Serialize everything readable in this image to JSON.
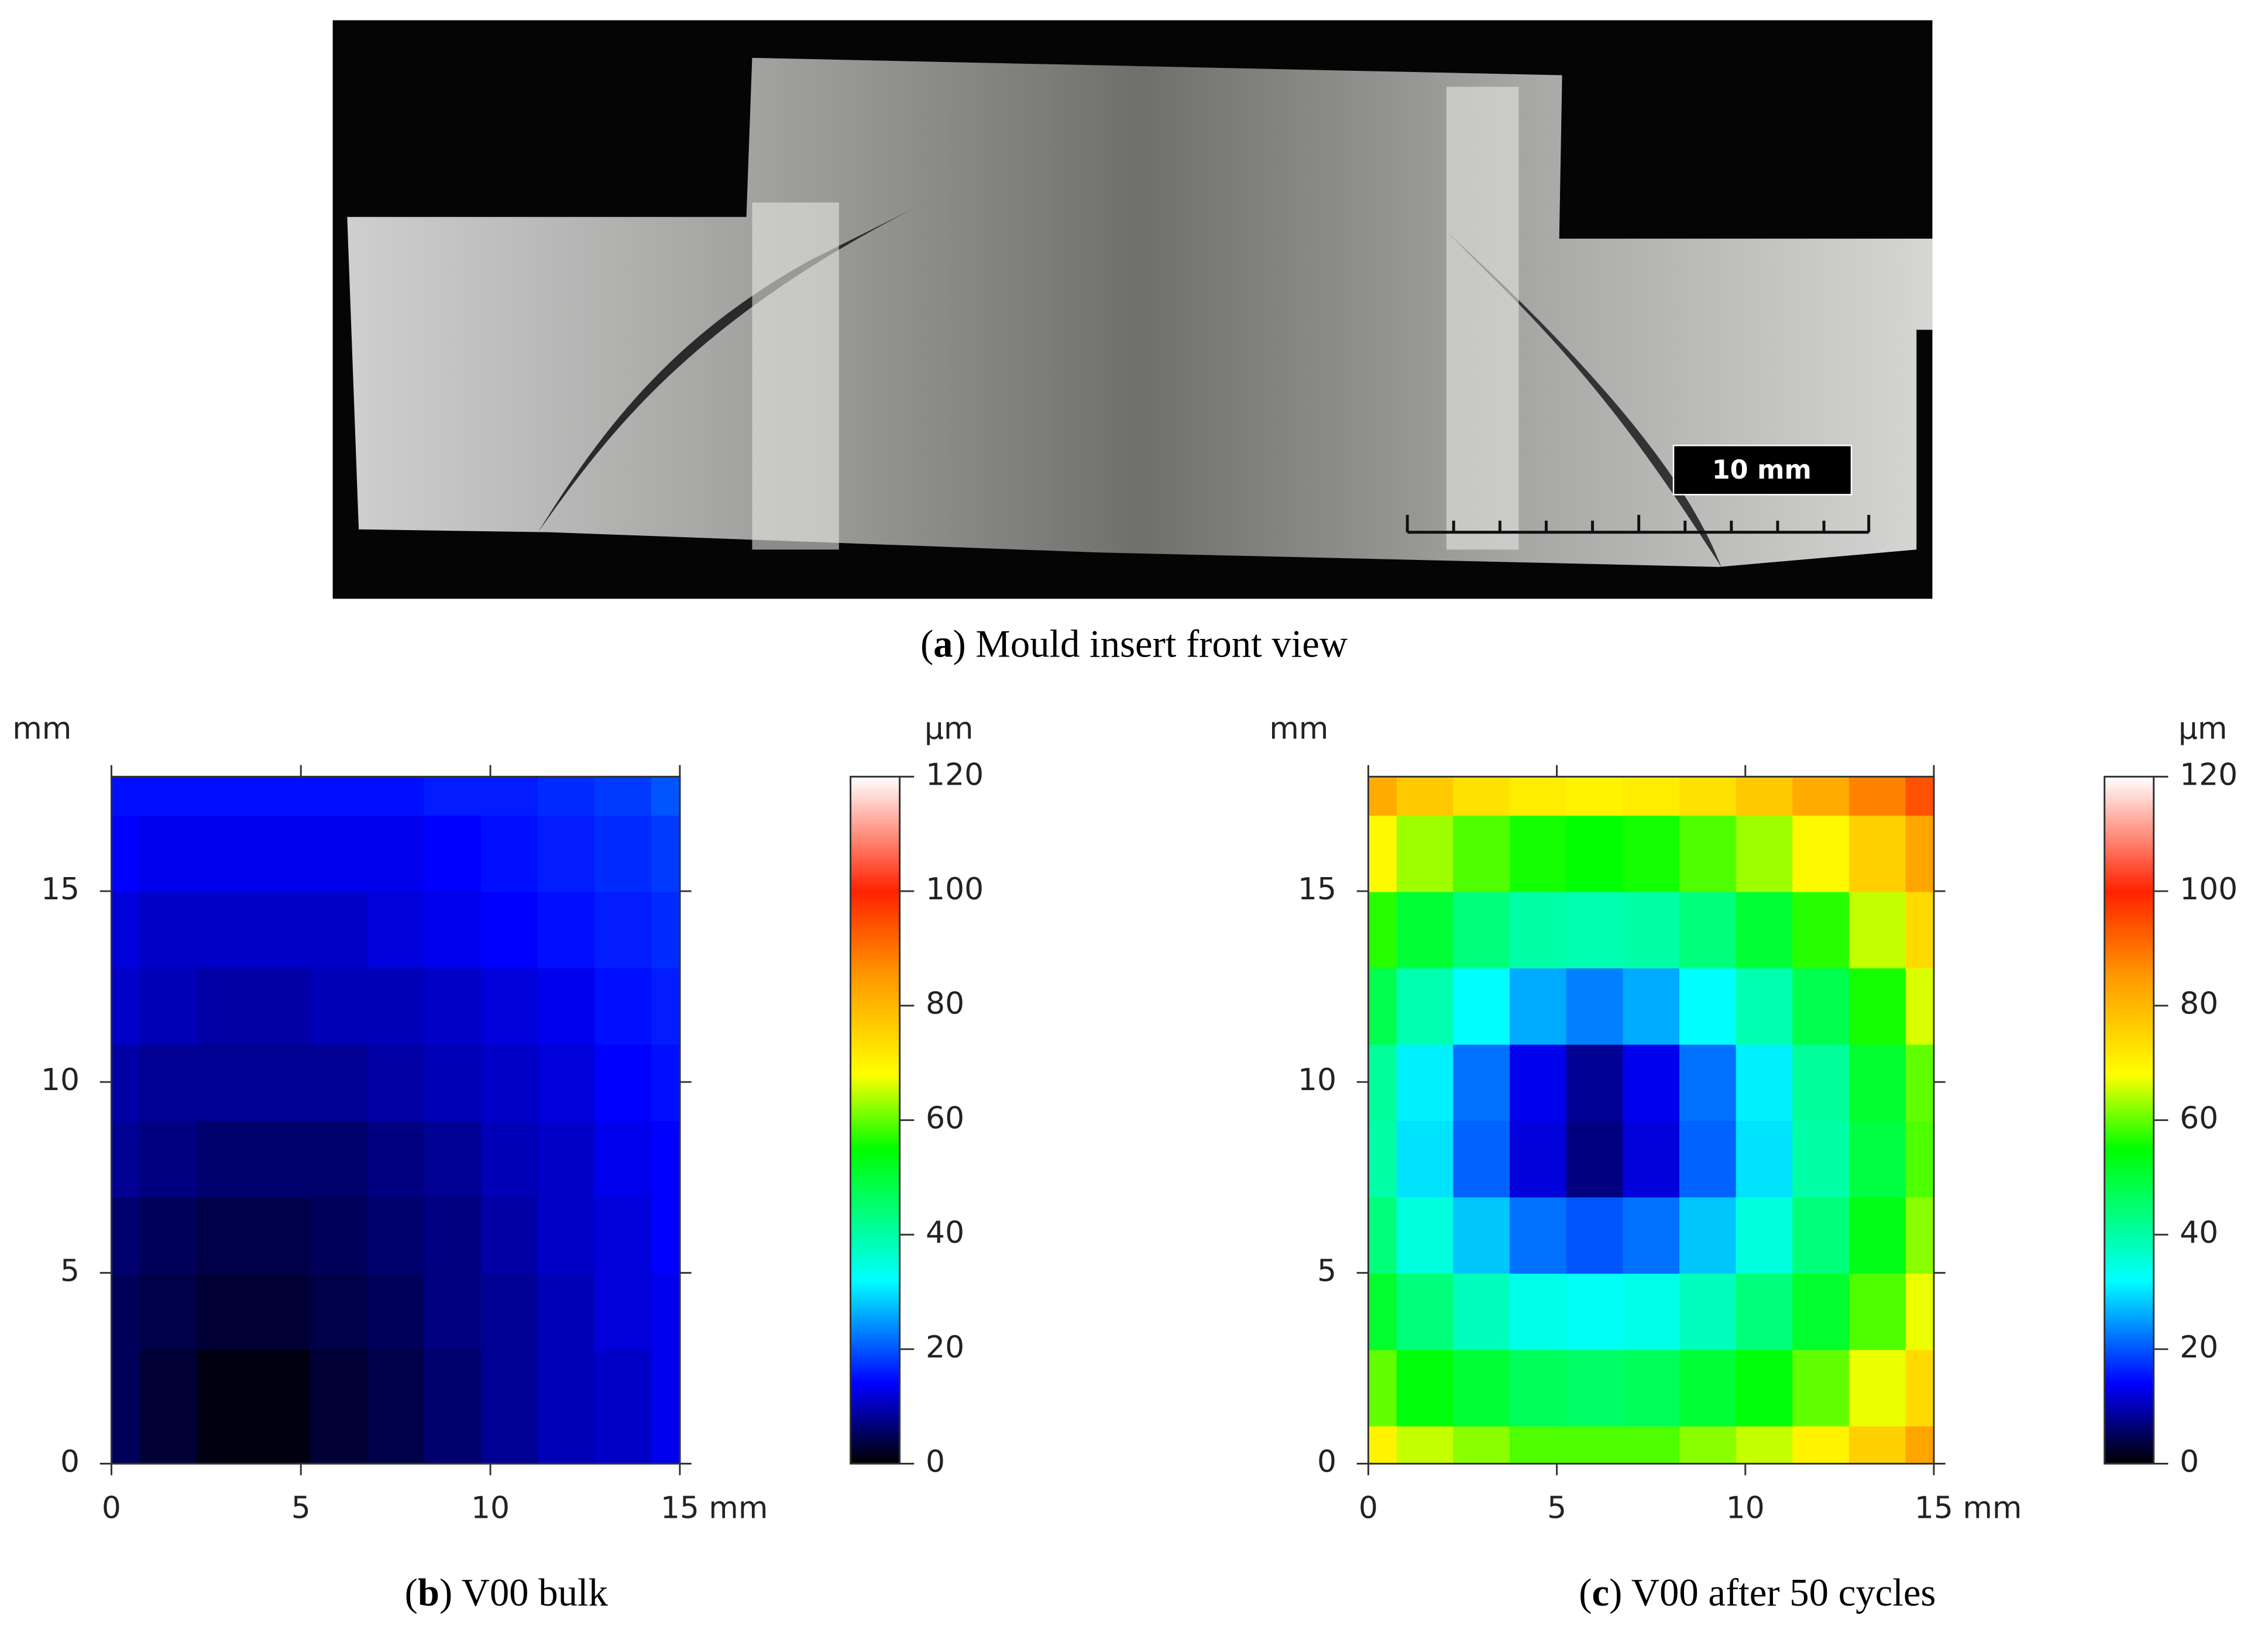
{
  "figure": {
    "photo": {
      "scale_label": "10 mm",
      "caption": [
        "(",
        "a",
        ") Mould insert front view"
      ]
    },
    "captions": [
      [
        "(",
        "b",
        ") V00 bulk"
      ],
      [
        "(",
        "c",
        ") V00 after 50 cycles"
      ]
    ]
  },
  "chart_data": [
    {
      "type": "heatmap",
      "xlabel": "mm",
      "ylabel": "mm",
      "colorbar_label": "µm",
      "x": [
        0,
        1.5,
        3,
        4.5,
        6,
        7.5,
        9,
        10.5,
        12,
        13.5,
        15
      ],
      "y": [
        0,
        2,
        4,
        6,
        8,
        10,
        12,
        14,
        16,
        18
      ],
      "values": [
        [
          5,
          3,
          1,
          1,
          3,
          4,
          6,
          8,
          10,
          11,
          13
        ],
        [
          5,
          3,
          1,
          1,
          3,
          4,
          6,
          8,
          10,
          11,
          13
        ],
        [
          5,
          4,
          3,
          3,
          4,
          5,
          7,
          8,
          10,
          12,
          13
        ],
        [
          6,
          5,
          4,
          4,
          5,
          6,
          7,
          9,
          11,
          12,
          14
        ],
        [
          8,
          7,
          6,
          6,
          6,
          7,
          8,
          10,
          11,
          13,
          14
        ],
        [
          9,
          8,
          8,
          8,
          8,
          9,
          10,
          11,
          12,
          14,
          15
        ],
        [
          11,
          10,
          9,
          9,
          10,
          10,
          11,
          12,
          13,
          15,
          16
        ],
        [
          12,
          11,
          11,
          11,
          11,
          12,
          13,
          14,
          15,
          16,
          17
        ],
        [
          14,
          13,
          13,
          13,
          13,
          13,
          14,
          15,
          16,
          17,
          18
        ],
        [
          15,
          15,
          15,
          15,
          15,
          15,
          16,
          16,
          17,
          18,
          20
        ]
      ],
      "xlim": [
        0,
        15
      ],
      "ylim": [
        0,
        18
      ],
      "xticks": [
        0,
        5,
        10,
        15
      ],
      "yticks": [
        0,
        5,
        10,
        15
      ],
      "clim": [
        0,
        120
      ],
      "cticks": [
        0,
        20,
        40,
        60,
        80,
        100,
        120
      ],
      "colorscale": [
        [
          0,
          "#000000"
        ],
        [
          14,
          "#0000ff"
        ],
        [
          32,
          "#00ffff"
        ],
        [
          55,
          "#00ff00"
        ],
        [
          68,
          "#ffff00"
        ],
        [
          85,
          "#ff9900"
        ],
        [
          100,
          "#ff2200"
        ],
        [
          120,
          "#ffffff"
        ]
      ]
    },
    {
      "type": "heatmap",
      "xlabel": "mm",
      "ylabel": "mm",
      "colorbar_label": "µm",
      "x": [
        0,
        1.5,
        3,
        4.5,
        6,
        7.5,
        9,
        10.5,
        12,
        13.5,
        15
      ],
      "y": [
        0,
        2,
        4,
        6,
        8,
        10,
        12,
        14,
        16,
        18
      ],
      "values": [
        [
          70,
          65,
          62,
          59,
          59,
          59,
          62,
          65,
          70,
          76,
          83
        ],
        [
          60,
          54,
          50,
          47,
          46,
          47,
          50,
          54,
          60,
          67,
          74
        ],
        [
          51,
          44,
          38,
          34,
          33,
          34,
          38,
          44,
          51,
          59,
          67
        ],
        [
          44,
          35,
          28,
          22,
          20,
          22,
          28,
          35,
          44,
          53,
          62
        ],
        [
          40,
          30,
          21,
          12,
          7,
          12,
          21,
          30,
          40,
          49,
          59
        ],
        [
          41,
          31,
          22,
          13,
          8,
          13,
          22,
          31,
          41,
          51,
          60
        ],
        [
          48,
          39,
          32,
          26,
          23,
          26,
          32,
          39,
          48,
          56,
          66
        ],
        [
          57,
          50,
          44,
          40,
          39,
          40,
          44,
          50,
          57,
          65,
          74
        ],
        [
          69,
          63,
          59,
          56,
          55,
          56,
          59,
          63,
          69,
          76,
          83
        ],
        [
          82,
          77,
          73,
          71,
          70,
          71,
          73,
          77,
          82,
          88,
          94
        ]
      ],
      "xlim": [
        0,
        15
      ],
      "ylim": [
        0,
        18
      ],
      "xticks": [
        0,
        5,
        10,
        15
      ],
      "yticks": [
        0,
        5,
        10,
        15
      ],
      "clim": [
        0,
        120
      ],
      "cticks": [
        0,
        20,
        40,
        60,
        80,
        100,
        120
      ],
      "colorscale": [
        [
          0,
          "#000000"
        ],
        [
          14,
          "#0000ff"
        ],
        [
          32,
          "#00ffff"
        ],
        [
          55,
          "#00ff00"
        ],
        [
          68,
          "#ffff00"
        ],
        [
          85,
          "#ff9900"
        ],
        [
          100,
          "#ff2200"
        ],
        [
          120,
          "#ffffff"
        ]
      ]
    }
  ]
}
